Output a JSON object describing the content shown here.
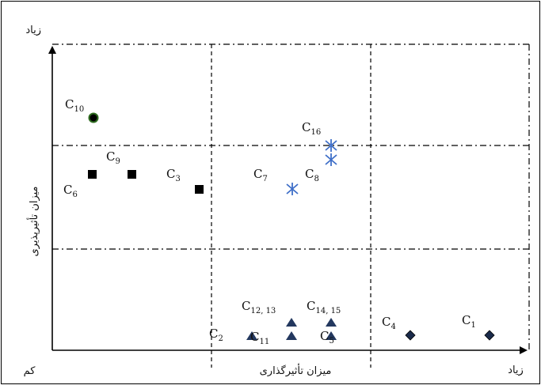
{
  "axes": {
    "x_title": "میزان تأثیرگذاری",
    "y_title": "میزان تأثیرپذیری",
    "x_high": "زیاد",
    "y_high": "زیاد",
    "low": "کم"
  },
  "colors": {
    "frame": "#000000",
    "square": "#000000",
    "star": "#3f6fc8",
    "triangle": "#23385f",
    "diamond": "#1a2a4a",
    "dot_fill": "#000000",
    "dot_ring": "#2e6b1f"
  },
  "points": [
    {
      "id": "c10",
      "marker": "dot",
      "main": "C",
      "sub": "10"
    },
    {
      "id": "c6",
      "marker": "square",
      "main": "C",
      "sub": "6"
    },
    {
      "id": "c9",
      "marker": "square",
      "main": "C",
      "sub": "9"
    },
    {
      "id": "c3",
      "marker": "square",
      "main": "C",
      "sub": "3"
    },
    {
      "id": "c16",
      "marker": "star",
      "main": "C",
      "sub": "16"
    },
    {
      "id": "c7",
      "marker": "star",
      "main": "C",
      "sub": "7"
    },
    {
      "id": "c8",
      "marker": "star",
      "main": "C",
      "sub": "8"
    },
    {
      "id": "c12-13",
      "marker": "triangle",
      "main": "C",
      "sub": "12, 13"
    },
    {
      "id": "c14-15",
      "marker": "triangle",
      "main": "C",
      "sub": "14, 15"
    },
    {
      "id": "c2",
      "marker": "triangle",
      "main": "C",
      "sub": "2"
    },
    {
      "id": "c11",
      "marker": "triangle",
      "main": "C",
      "sub": "11"
    },
    {
      "id": "c5",
      "marker": "triangle",
      "main": "C",
      "sub": "5"
    },
    {
      "id": "c4",
      "marker": "diamond",
      "main": "C",
      "sub": "4"
    },
    {
      "id": "c1",
      "marker": "diamond",
      "main": "C",
      "sub": "1"
    }
  ]
}
